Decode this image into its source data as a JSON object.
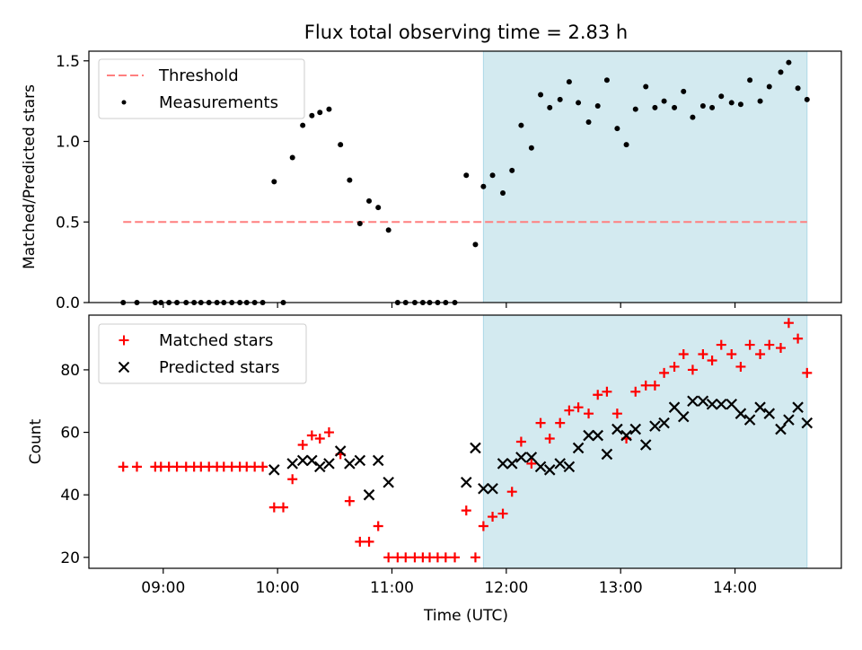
{
  "chart_data": {
    "type": "scatter",
    "title": "Flux total observing time = 2.83 h",
    "xlabel": "Time (UTC)",
    "x_unit": "hours UTC",
    "x_ticks": [
      {
        "value": 9,
        "label": "09:00"
      },
      {
        "value": 10,
        "label": "10:00"
      },
      {
        "value": 11,
        "label": "11:00"
      },
      {
        "value": 12,
        "label": "12:00"
      },
      {
        "value": 13,
        "label": "13:00"
      },
      {
        "value": 14,
        "label": "14:00"
      }
    ],
    "xlim": [
      8.35,
      14.93
    ],
    "highlight_span": [
      11.8,
      14.63
    ],
    "highlight_color": "#d3eaf0",
    "panels": [
      {
        "ylabel": "Matched/Predicted stars",
        "ylim": [
          0,
          1.56
        ],
        "yticks": [
          {
            "value": 0,
            "label": "0.0"
          },
          {
            "value": 0.5,
            "label": "0.5"
          },
          {
            "value": 1.0,
            "label": "1.0"
          },
          {
            "value": 1.5,
            "label": "1.5"
          }
        ],
        "legend": {
          "position": "top-left",
          "entries": [
            {
              "label": "Threshold",
              "marker": "dashed-line",
              "color": "#ff7f7f"
            },
            {
              "label": "Measurements",
              "marker": "dot",
              "color": "#000000"
            }
          ]
        },
        "threshold": {
          "name": "Threshold",
          "value": 0.5,
          "x_range": [
            8.65,
            14.63
          ],
          "color": "#ff7f7f"
        },
        "series": [
          {
            "name": "Measurements",
            "marker": "dot",
            "color": "#000000",
            "x": [
              8.65,
              8.77,
              8.93,
              8.98,
              9.05,
              9.12,
              9.2,
              9.27,
              9.33,
              9.4,
              9.47,
              9.53,
              9.6,
              9.67,
              9.73,
              9.8,
              9.87,
              9.97,
              10.05,
              10.13,
              10.22,
              10.3,
              10.37,
              10.45,
              10.55,
              10.63,
              10.72,
              10.8,
              10.88,
              10.97,
              11.05,
              11.12,
              11.2,
              11.27,
              11.33,
              11.4,
              11.47,
              11.55,
              11.65,
              11.73,
              11.8,
              11.88,
              11.97,
              12.05,
              12.13,
              12.22,
              12.3,
              12.38,
              12.47,
              12.55,
              12.63,
              12.72,
              12.8,
              12.88,
              12.97,
              13.05,
              13.13,
              13.22,
              13.3,
              13.38,
              13.47,
              13.55,
              13.63,
              13.72,
              13.8,
              13.88,
              13.97,
              14.05,
              14.13,
              14.22,
              14.3,
              14.4,
              14.47,
              14.55,
              14.63
            ],
            "y": [
              0,
              0,
              0,
              0,
              0,
              0,
              0,
              0,
              0,
              0,
              0,
              0,
              0,
              0,
              0,
              0,
              0,
              0.75,
              0,
              0.9,
              1.1,
              1.16,
              1.18,
              1.2,
              0.98,
              0.76,
              0.49,
              0.63,
              0.59,
              0.45,
              0,
              0,
              0,
              0,
              0,
              0,
              0,
              0,
              0.79,
              0.36,
              0.72,
              0.79,
              0.68,
              0.82,
              1.1,
              0.96,
              1.29,
              1.21,
              1.26,
              1.37,
              1.24,
              1.12,
              1.22,
              1.38,
              1.08,
              0.98,
              1.2,
              1.34,
              1.21,
              1.25,
              1.21,
              1.31,
              1.15,
              1.22,
              1.21,
              1.28,
              1.24,
              1.23,
              1.38,
              1.25,
              1.34,
              1.43,
              1.49,
              1.33,
              1.26
            ]
          }
        ]
      },
      {
        "ylabel": "Count",
        "ylim": [
          16.5,
          97.5
        ],
        "yticks": [
          {
            "value": 20,
            "label": "20"
          },
          {
            "value": 40,
            "label": "40"
          },
          {
            "value": 60,
            "label": "60"
          },
          {
            "value": 80,
            "label": "80"
          }
        ],
        "legend": {
          "position": "top-left",
          "entries": [
            {
              "label": "Matched stars",
              "marker": "plus",
              "color": "#ff0000"
            },
            {
              "label": "Predicted stars",
              "marker": "x",
              "color": "#000000"
            }
          ]
        },
        "series": [
          {
            "name": "Matched stars",
            "marker": "plus",
            "color": "#ff0000",
            "x": [
              8.65,
              8.77,
              8.93,
              8.98,
              9.05,
              9.12,
              9.2,
              9.27,
              9.33,
              9.4,
              9.47,
              9.53,
              9.6,
              9.67,
              9.73,
              9.8,
              9.87,
              9.97,
              10.05,
              10.13,
              10.22,
              10.3,
              10.37,
              10.45,
              10.55,
              10.63,
              10.72,
              10.8,
              10.88,
              10.97,
              11.05,
              11.12,
              11.2,
              11.27,
              11.33,
              11.4,
              11.47,
              11.55,
              11.65,
              11.73,
              11.8,
              11.88,
              11.97,
              12.05,
              12.13,
              12.22,
              12.3,
              12.38,
              12.47,
              12.55,
              12.63,
              12.72,
              12.8,
              12.88,
              12.97,
              13.05,
              13.13,
              13.22,
              13.3,
              13.38,
              13.47,
              13.55,
              13.63,
              13.72,
              13.8,
              13.88,
              13.97,
              14.05,
              14.13,
              14.22,
              14.3,
              14.4,
              14.47,
              14.55,
              14.63
            ],
            "y": [
              49,
              49,
              49,
              49,
              49,
              49,
              49,
              49,
              49,
              49,
              49,
              49,
              49,
              49,
              49,
              49,
              49,
              36,
              36,
              45,
              56,
              59,
              58,
              60,
              53,
              38,
              25,
              25,
              30,
              20,
              20,
              20,
              20,
              20,
              20,
              20,
              20,
              20,
              35,
              20,
              30,
              33,
              34,
              41,
              57,
              50,
              63,
              58,
              63,
              67,
              68,
              66,
              72,
              73,
              66,
              58,
              73,
              75,
              75,
              79,
              81,
              85,
              80,
              85,
              83,
              88,
              85,
              81,
              88,
              85,
              88,
              87,
              95,
              90,
              79
            ]
          },
          {
            "name": "Predicted stars",
            "marker": "x",
            "color": "#000000",
            "x": [
              9.97,
              10.13,
              10.22,
              10.3,
              10.37,
              10.45,
              10.55,
              10.63,
              10.72,
              10.8,
              10.88,
              10.97,
              11.65,
              11.73,
              11.8,
              11.88,
              11.97,
              12.05,
              12.13,
              12.22,
              12.3,
              12.38,
              12.47,
              12.55,
              12.63,
              12.72,
              12.8,
              12.88,
              12.97,
              13.05,
              13.13,
              13.22,
              13.3,
              13.38,
              13.47,
              13.55,
              13.63,
              13.72,
              13.8,
              13.88,
              13.97,
              14.05,
              14.13,
              14.22,
              14.3,
              14.4,
              14.47,
              14.55,
              14.63
            ],
            "y": [
              48,
              50,
              51,
              51,
              49,
              50,
              54,
              50,
              51,
              40,
              51,
              44,
              44,
              55,
              42,
              42,
              50,
              50,
              52,
              52,
              49,
              48,
              50,
              49,
              55,
              59,
              59,
              53,
              61,
              59,
              61,
              56,
              62,
              63,
              68,
              65,
              70,
              70,
              69,
              69,
              69,
              66,
              64,
              68,
              66,
              61,
              64,
              68,
              63
            ]
          }
        ]
      }
    ]
  }
}
